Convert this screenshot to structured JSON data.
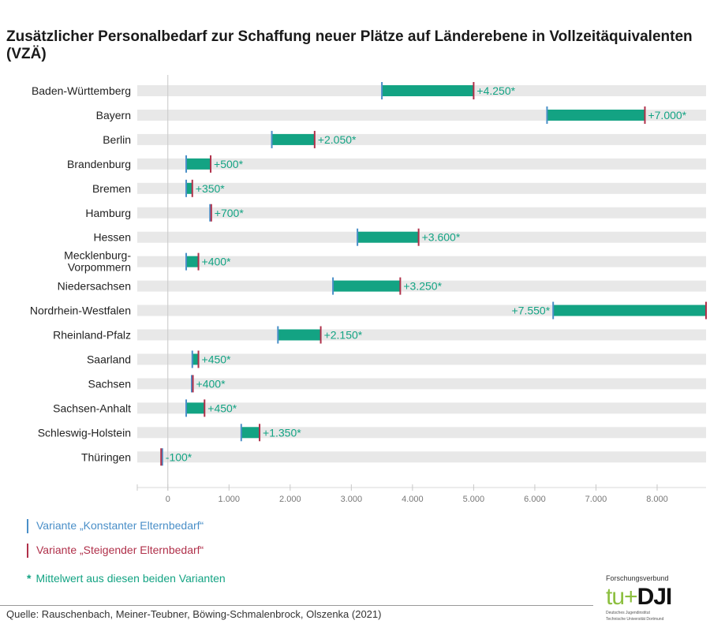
{
  "title": "Zusätzlicher Personalbedarf zur Schaffung neuer Plätze auf Länderebene in Vollzeitäquivalenten (VZÄ)",
  "chart_data": {
    "type": "bar",
    "orientation": "horizontal-range",
    "x_ticks": [
      "0",
      "1.000",
      "2.000",
      "3.000",
      "4.000",
      "5.000",
      "6.000",
      "7.000",
      "8.000"
    ],
    "x_tick_values": [
      0,
      1000,
      2000,
      3000,
      4000,
      5000,
      6000,
      7000,
      8000
    ],
    "xlim": [
      -500,
      8800
    ],
    "colors": {
      "range": "#13a383",
      "konstant": "#4a8fc8",
      "steigend": "#b0304a",
      "track": "#e8e8e8",
      "label": "#13a383"
    },
    "rows": [
      {
        "state": "Baden-Württemberg",
        "konstant": 3500,
        "steigend": 5000,
        "label": "+4.250*",
        "label_side": "right"
      },
      {
        "state": "Bayern",
        "konstant": 6200,
        "steigend": 7800,
        "label": "+7.000*",
        "label_side": "right"
      },
      {
        "state": "Berlin",
        "konstant": 1700,
        "steigend": 2400,
        "label": "+2.050*",
        "label_side": "right"
      },
      {
        "state": "Brandenburg",
        "konstant": 300,
        "steigend": 700,
        "label": "+500*",
        "label_side": "right"
      },
      {
        "state": "Bremen",
        "konstant": 300,
        "steigend": 400,
        "label": "+350*",
        "label_side": "right"
      },
      {
        "state": "Hamburg",
        "konstant": 690,
        "steigend": 710,
        "label": "+700*",
        "label_side": "right"
      },
      {
        "state": "Hessen",
        "konstant": 3100,
        "steigend": 4100,
        "label": "+3.600*",
        "label_side": "right"
      },
      {
        "state": "Mecklenburg-\nVorpommern",
        "konstant": 300,
        "steigend": 500,
        "label": "+400*",
        "label_side": "right"
      },
      {
        "state": "Niedersachsen",
        "konstant": 2700,
        "steigend": 3800,
        "label": "+3.250*",
        "label_side": "right"
      },
      {
        "state": "Nordrhein-Westfalen",
        "konstant": 6300,
        "steigend": 8800,
        "label": "+7.550*",
        "label_side": "left"
      },
      {
        "state": "Rheinland-Pfalz",
        "konstant": 1800,
        "steigend": 2500,
        "label": "+2.150*",
        "label_side": "right"
      },
      {
        "state": "Saarland",
        "konstant": 400,
        "steigend": 500,
        "label": "+450*",
        "label_side": "right"
      },
      {
        "state": "Sachsen",
        "konstant": 390,
        "steigend": 410,
        "label": "+400*",
        "label_side": "right"
      },
      {
        "state": "Sachsen-Anhalt",
        "konstant": 300,
        "steigend": 600,
        "label": "+450*",
        "label_side": "right"
      },
      {
        "state": "Schleswig-Holstein",
        "konstant": 1200,
        "steigend": 1500,
        "label": "+1.350*",
        "label_side": "right"
      },
      {
        "state": "Thüringen",
        "konstant": -90,
        "steigend": -110,
        "label": "-100*",
        "label_side": "right"
      }
    ]
  },
  "legend": {
    "konstant": "Variante „Konstanter Elternbedarf“",
    "steigend": "Variante „Steigender Elternbedarf“",
    "mittelwert_star": "*",
    "mittelwert": "Mittelwert aus diesen beiden Varianten"
  },
  "source": "Quelle: Rauschenbach, Meiner-Teubner, Böwing-Schmalenbrock, Olszenka (2021)",
  "logo": {
    "caption": "Forschungsverbund",
    "tu": "tu",
    "plus": "+",
    "dji": "DJI",
    "sub1": "Deutsches Jugendinstitut",
    "sub2": "Technische Universität Dortmund"
  }
}
